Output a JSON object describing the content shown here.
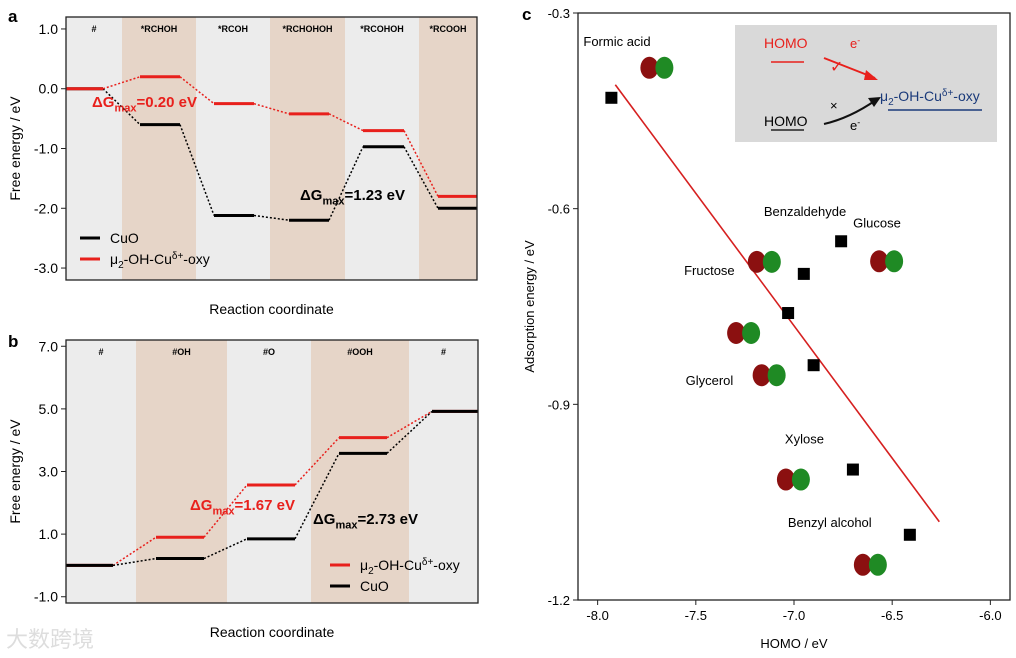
{
  "watermark": "大数跨境",
  "chart_data": [
    {
      "panel": "a",
      "type": "line",
      "subtype": "energy-level-diagram",
      "xlabel": "Reaction coordinate",
      "ylabel": "Free energy / eV",
      "ylim": [
        -3.2,
        1.2
      ],
      "yticks": [
        1.0,
        0.0,
        -1.0,
        -2.0,
        -3.0
      ],
      "ytick_labels": [
        "1.0",
        "0.0",
        "-1.0",
        "-2.0",
        "-3.0"
      ],
      "categories": [
        "#",
        "*RCHOH",
        "*RCOH",
        "*RCHOHOH",
        "*RCOHOH",
        "*RCOOH"
      ],
      "series": [
        {
          "name": "CuO",
          "color": "#000000",
          "values": [
            0.0,
            -0.6,
            -2.12,
            -2.2,
            -0.97,
            -2.0
          ]
        },
        {
          "name": "μ2-OH-Cuδ+-oxy",
          "color": "#e8201c",
          "values": [
            0.0,
            0.2,
            -0.25,
            -0.42,
            -0.7,
            -1.8
          ]
        }
      ],
      "legend": [
        {
          "label": "CuO",
          "color": "#000000"
        },
        {
          "base": "μ",
          "sub": "2",
          "mid": "-OH-Cu",
          "sup": "δ+",
          "tail": "-oxy",
          "color": "#e8201c"
        }
      ],
      "legend_position": "bottom-left",
      "annotations": [
        {
          "pre": "ΔG",
          "sub": "max",
          "post": "=0.20 eV",
          "color": "#e8201c"
        },
        {
          "pre": "ΔG",
          "sub": "max",
          "post": "=1.23 eV",
          "color": "#000000"
        }
      ]
    },
    {
      "panel": "b",
      "type": "line",
      "subtype": "energy-level-diagram",
      "xlabel": "Reaction coordinate",
      "ylabel": "Free energy / eV",
      "ylim": [
        -1.2,
        7.2
      ],
      "yticks": [
        7.0,
        5.0,
        3.0,
        1.0,
        -1.0
      ],
      "ytick_labels": [
        "7.0",
        "5.0",
        "3.0",
        "1.0",
        "-1.0"
      ],
      "categories": [
        "#",
        "#OH",
        "#O",
        "#OOH",
        "#"
      ],
      "series": [
        {
          "name": "μ2-OH-Cuδ+-oxy",
          "color": "#e8201c",
          "values": [
            0.0,
            0.9,
            2.57,
            4.08,
            4.92
          ]
        },
        {
          "name": "CuO",
          "color": "#000000",
          "values": [
            0.0,
            0.22,
            0.85,
            3.58,
            4.92
          ]
        }
      ],
      "legend": [
        {
          "base": "μ",
          "sub": "2",
          "mid": "-OH-Cu",
          "sup": "δ+",
          "tail": "-oxy",
          "color": "#e8201c"
        },
        {
          "label": "CuO",
          "color": "#000000"
        }
      ],
      "legend_position": "bottom-right",
      "annotations": [
        {
          "pre": "ΔG",
          "sub": "max",
          "post": "=1.67 eV",
          "color": "#e8201c"
        },
        {
          "pre": "ΔG",
          "sub": "max",
          "post": "=2.73 eV",
          "color": "#000000"
        }
      ]
    },
    {
      "panel": "c",
      "type": "scatter",
      "xlabel": "HOMO / eV",
      "ylabel": "Adsorption energy / eV",
      "xlim": [
        -8.1,
        -5.9
      ],
      "ylim": [
        -1.2,
        -0.3
      ],
      "xticks": [
        -8.0,
        -7.5,
        -7.0,
        -6.5,
        -6.0
      ],
      "xtick_labels": [
        "-8.0",
        "-7.5",
        "-7.0",
        "-6.5",
        "-6.0"
      ],
      "yticks": [
        -0.3,
        -0.6,
        -0.9,
        -1.2
      ],
      "ytick_labels": [
        "-0.3",
        "-0.6",
        "-0.9",
        "-1.2"
      ],
      "points": [
        {
          "label": "Formic acid",
          "x": -7.93,
          "y": -0.43
        },
        {
          "label": "Benzaldehyde",
          "x": -6.95,
          "y": -0.7
        },
        {
          "label": "Glucose",
          "x": -6.76,
          "y": -0.65
        },
        {
          "label": "Fructose",
          "x": -7.03,
          "y": -0.76
        },
        {
          "label": "Glycerol",
          "x": -6.9,
          "y": -0.84
        },
        {
          "label": "Xylose",
          "x": -6.7,
          "y": -1.0
        },
        {
          "label": "Benzyl alcohol",
          "x": -6.41,
          "y": -1.1
        }
      ],
      "fit_line": {
        "color": "#d62020",
        "x": [
          -7.91,
          -6.26
        ],
        "y": [
          -0.41,
          -1.08
        ]
      },
      "inset": {
        "homo_red": "HOMO",
        "homo_black": "HOMO",
        "electron": "e",
        "electron_sup": "-",
        "check": "✓",
        "cross": "×",
        "target": {
          "base": "μ",
          "sub": "2",
          "mid": "-OH-Cu",
          "sup": "δ+",
          "tail": "-oxy"
        }
      }
    }
  ],
  "panel_labels": [
    "a",
    "b",
    "c"
  ]
}
